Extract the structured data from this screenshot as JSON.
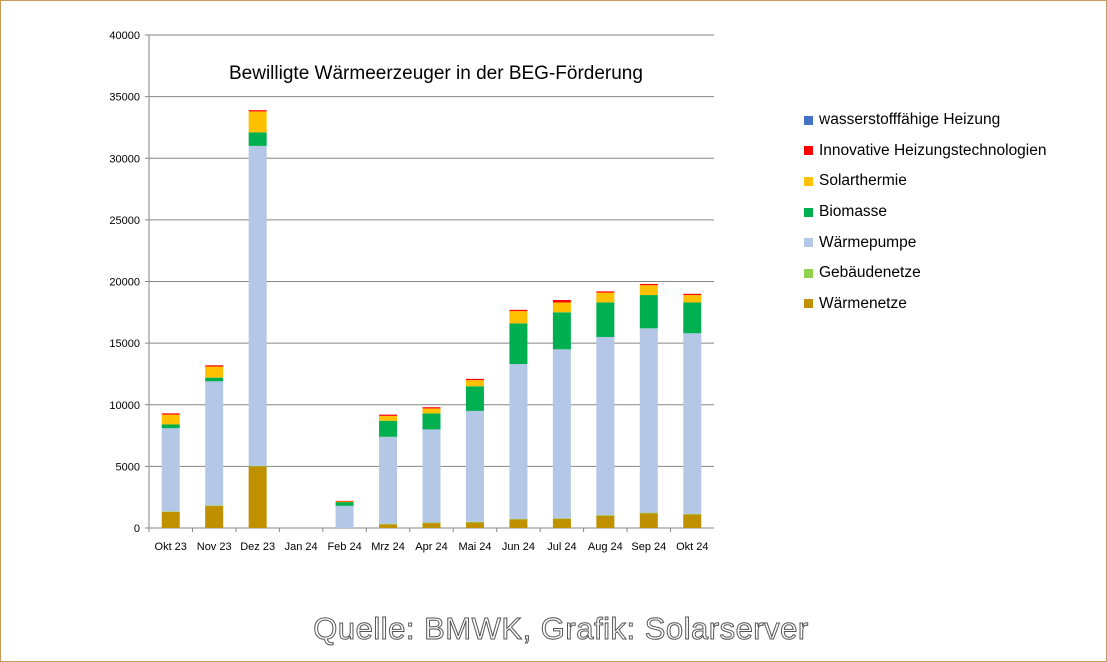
{
  "chart_data": {
    "type": "bar",
    "stacked": true,
    "title": "Bewilligte Wärmeerzeuger  in der BEG-Förderung",
    "ylim": [
      0,
      40000
    ],
    "yticks": [
      0,
      5000,
      10000,
      15000,
      20000,
      25000,
      30000,
      35000,
      40000
    ],
    "grid": true,
    "legend_position": "right",
    "categories": [
      "Okt 23",
      "Nov 23",
      "Dez 23",
      "Jan 24",
      "Feb 24",
      "Mrz 24",
      "Apr 24",
      "Mai 24",
      "Jun 24",
      "Jul 24",
      "Aug 24",
      "Sep 24",
      "Okt 24"
    ],
    "series": [
      {
        "name": "Wärmenetze",
        "color": "#bf9000",
        "values": [
          1300,
          1800,
          5000,
          0,
          0,
          300,
          400,
          450,
          700,
          750,
          1000,
          1200,
          1100
        ]
      },
      {
        "name": "Gebäudenetze",
        "color": "#92d050",
        "values": [
          50,
          50,
          50,
          0,
          0,
          50,
          50,
          50,
          50,
          50,
          50,
          50,
          50
        ]
      },
      {
        "name": "Wärmepumpe",
        "color": "#b4c7e7",
        "values": [
          6750,
          10050,
          25950,
          0,
          1800,
          7050,
          7550,
          9000,
          12550,
          13700,
          14450,
          14950,
          14650
        ]
      },
      {
        "name": "Biomasse",
        "color": "#00b050",
        "values": [
          300,
          300,
          1100,
          0,
          300,
          1300,
          1300,
          2000,
          3300,
          3000,
          2800,
          2700,
          2500
        ]
      },
      {
        "name": "Solarthermie",
        "color": "#ffc000",
        "values": [
          800,
          900,
          1700,
          0,
          50,
          400,
          400,
          500,
          1000,
          800,
          800,
          800,
          600
        ]
      },
      {
        "name": "Innovative Heizungstechnologien",
        "color": "#ff0000",
        "values": [
          100,
          100,
          100,
          0,
          50,
          100,
          100,
          100,
          100,
          200,
          100,
          100,
          100
        ]
      },
      {
        "name": "wasserstofffähige Heizung",
        "color": "#4472c4",
        "values": [
          0,
          0,
          0,
          0,
          0,
          0,
          0,
          0,
          0,
          0,
          0,
          0,
          0
        ]
      }
    ]
  },
  "source": "Quelle: BMWK, Grafik: Solarserver"
}
